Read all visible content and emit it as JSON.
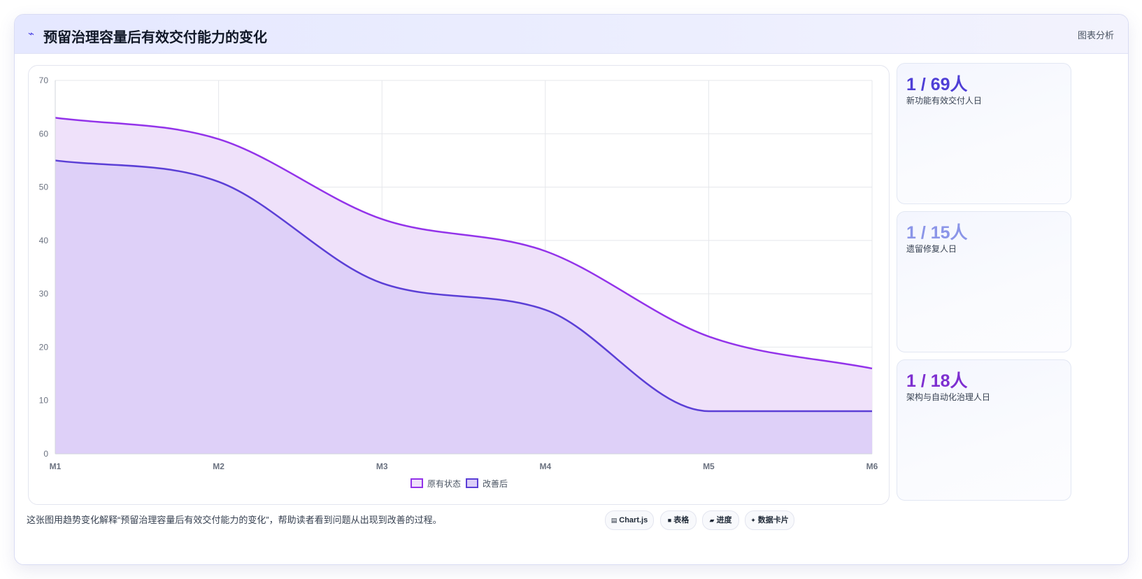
{
  "header": {
    "icon": "chart-trend-icon",
    "title": "预留治理容量后有效交付能力的变化",
    "right_label": "图表分析"
  },
  "chart_data": {
    "type": "area",
    "title": "",
    "xlabel": "",
    "ylabel": "",
    "categories": [
      "M1",
      "M2",
      "M3",
      "M4",
      "M5",
      "M6"
    ],
    "ylim": [
      0,
      70
    ],
    "yticks": [
      0,
      10,
      20,
      30,
      40,
      50,
      60,
      70
    ],
    "grid": true,
    "legend_position": "bottom",
    "series": [
      {
        "name": "原有状态",
        "values": [
          63,
          59,
          44,
          38,
          22,
          16
        ],
        "color": "#9333ea",
        "fill": "#efe1fa"
      },
      {
        "name": "改善后",
        "values": [
          55,
          51,
          32,
          27,
          8,
          8
        ],
        "color": "#5b3fd6",
        "fill": "#dccff8"
      }
    ]
  },
  "stats": [
    {
      "value": "1 / 69人",
      "label": "新功能有效交付人日",
      "color": "#4f3fd6"
    },
    {
      "value": "1 / 15人",
      "label": "遗留修复人日",
      "color": "#8b95e8"
    },
    {
      "value": "1 / 18人",
      "label": "架构与自动化治理人日",
      "color": "#7e2fd0"
    }
  ],
  "footer": {
    "description": "这张图用趋势变化解释“预留治理容量后有效交付能力的变化”，帮助读者看到问题从出现到改善的过程。",
    "chips": [
      {
        "icon": "chart-icon",
        "label": "Chart.js"
      },
      {
        "icon": "table-icon",
        "label": "表格"
      },
      {
        "icon": "progress-icon",
        "label": "进度"
      },
      {
        "icon": "sparkle-icon",
        "label": "数据卡片"
      }
    ]
  }
}
